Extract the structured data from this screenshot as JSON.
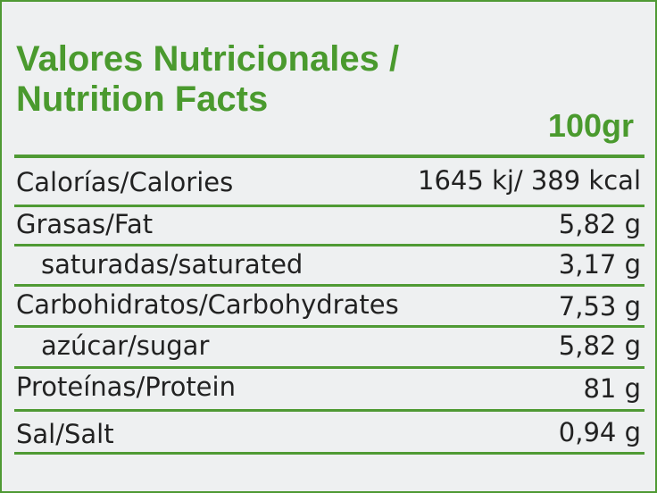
{
  "header": {
    "title_lines": [
      "Valores Nutricionales /",
      "Nutrition Facts"
    ],
    "column": "100gr"
  },
  "table": {
    "rows": [
      [
        "Calorías/Calories",
        "1645 kj/ 389 kcal"
      ],
      [
        "Grasas/Fat",
        "5,82 g"
      ],
      [
        "saturadas/saturated",
        "3,17 g"
      ],
      [
        "Carbohidratos/Carbohydrates",
        "7,53 g"
      ],
      [
        "azúcar/sugar",
        "5,82 g"
      ],
      [
        "Proteínas/Protein",
        "81 g"
      ],
      [
        "Sal/Salt",
        "0,94 g"
      ]
    ]
  }
}
